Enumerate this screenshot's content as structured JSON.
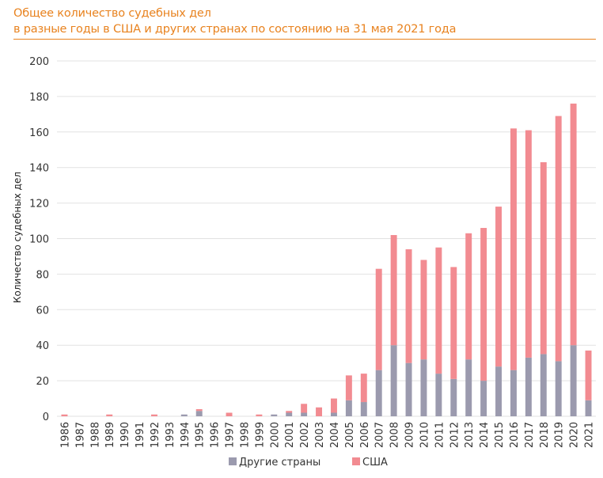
{
  "header": {
    "title_line1": "Общее количество судебных дел",
    "title_line2": "в разные годы в США и других странах по состоянию на 31 мая 2021 года"
  },
  "colors": {
    "title": "#E8821E",
    "other": "#9B9AAE",
    "usa": "#F28B91",
    "grid": "#E2E2E2"
  },
  "chart_data": {
    "type": "bar",
    "stacked": true,
    "title": "Общее количество судебных дел в разные годы в США и других странах по состоянию на 31 мая 2021 года",
    "xlabel": "",
    "ylabel": "Количество судебных дел",
    "ylim": [
      0,
      200
    ],
    "yticks": [
      0,
      20,
      40,
      60,
      80,
      100,
      120,
      140,
      160,
      180,
      200
    ],
    "grid": true,
    "legend_position": "bottom",
    "categories": [
      "1986",
      "1987",
      "1988",
      "1989",
      "1990",
      "1991",
      "1992",
      "1993",
      "1994",
      "1995",
      "1996",
      "1997",
      "1998",
      "1999",
      "2000",
      "2001",
      "2002",
      "2003",
      "2004",
      "2005",
      "2006",
      "2007",
      "2008",
      "2009",
      "2010",
      "2011",
      "2012",
      "2013",
      "2014",
      "2015",
      "2016",
      "2017",
      "2018",
      "2019",
      "2020",
      "2021"
    ],
    "series": [
      {
        "name": "Другие страны",
        "values": [
          0,
          0,
          0,
          0,
          0,
          0,
          0,
          0,
          1,
          3,
          0,
          0,
          0,
          0,
          1,
          2,
          2,
          0,
          2,
          9,
          8,
          26,
          40,
          30,
          32,
          24,
          21,
          32,
          20,
          28,
          26,
          33,
          35,
          31,
          40,
          9
        ]
      },
      {
        "name": "США",
        "values": [
          1,
          0,
          0,
          1,
          0,
          0,
          1,
          0,
          0,
          1,
          0,
          2,
          0,
          1,
          0,
          1,
          5,
          5,
          8,
          14,
          16,
          57,
          62,
          64,
          56,
          71,
          63,
          71,
          86,
          90,
          136,
          128,
          108,
          138,
          136,
          28
        ]
      }
    ]
  }
}
